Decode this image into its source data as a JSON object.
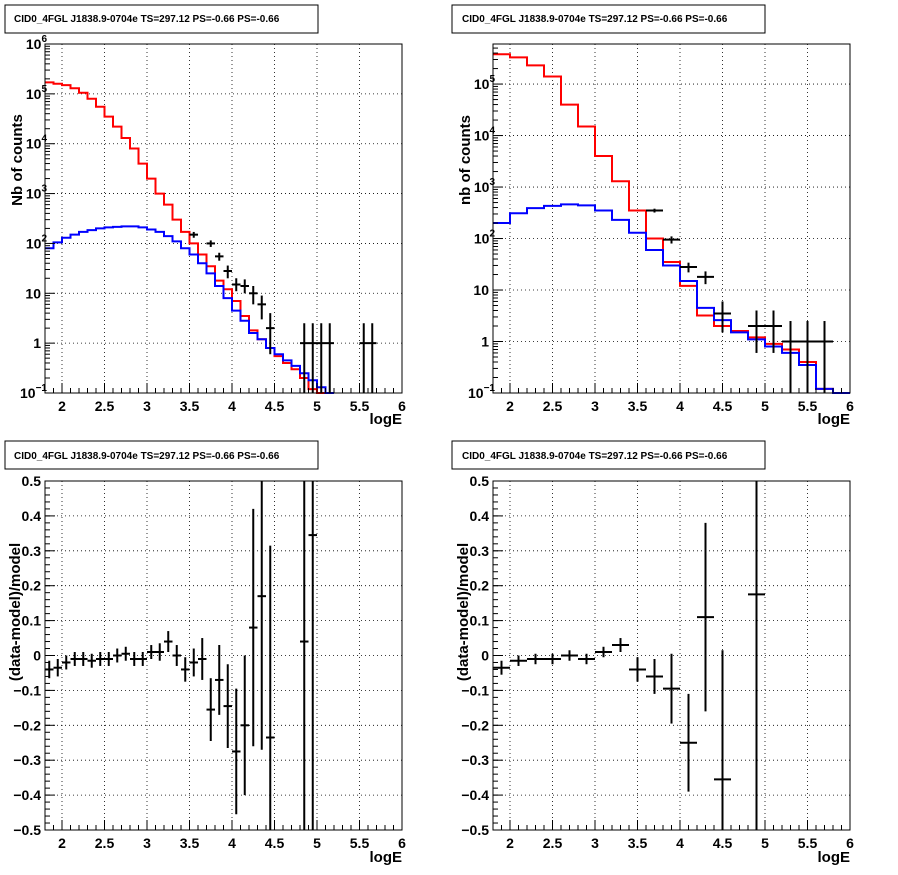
{
  "chart_data": [
    {
      "type": "histogram",
      "title": "CID0_4FGL J1838.9-0704e TS=297.12 PS=-0.66 PS=-0.66",
      "xlabel": "logE",
      "ylabel": "Nb of counts",
      "xlim": [
        1.8,
        6.0
      ],
      "ylim": [
        0.1,
        1000000
      ],
      "yscale": "log",
      "grid": true,
      "x_ticks": [
        "2",
        "2.5",
        "3",
        "3.5",
        "4",
        "4.5",
        "5",
        "5.5",
        "6"
      ],
      "y_ticks": [
        {
          "v": 0.1,
          "base": "10",
          "exp": "−1"
        },
        {
          "v": 1,
          "base": "1",
          "exp": ""
        },
        {
          "v": 10,
          "base": "10",
          "exp": ""
        },
        {
          "v": 100,
          "base": "10",
          "exp": "2"
        },
        {
          "v": 1000,
          "base": "10",
          "exp": "3"
        },
        {
          "v": 10000,
          "base": "10",
          "exp": "4"
        },
        {
          "v": 100000,
          "base": "10",
          "exp": "5"
        },
        {
          "v": 1000000,
          "base": "10",
          "exp": "6"
        }
      ],
      "bin_edges_start": 1.8,
      "bin_width": 0.1,
      "series": [
        {
          "color": "#ff0000",
          "kind": "step",
          "values": [
            170000,
            160000,
            150000,
            130000,
            105000,
            80000,
            55000,
            35000,
            22000,
            13000,
            8000,
            4000,
            2000,
            1000,
            600,
            300,
            170,
            100,
            60,
            35,
            18,
            12,
            7,
            3.5,
            1.8,
            1.2,
            0.8,
            0.55,
            0.4,
            0.3,
            0.2,
            0.12,
            0.1,
            0.1
          ]
        },
        {
          "color": "#0000ff",
          "kind": "step",
          "values": [
            80,
            105,
            130,
            150,
            170,
            185,
            200,
            210,
            215,
            220,
            220,
            210,
            190,
            170,
            140,
            110,
            80,
            60,
            40,
            25,
            14,
            8,
            4.5,
            2.8,
            1.6,
            1.2,
            0.8,
            0.6,
            0.45,
            0.35,
            0.25,
            0.18,
            0.13,
            0.1
          ]
        },
        {
          "color": "#000000",
          "kind": "points",
          "points": [
            {
              "x": 3.55,
              "y": 150,
              "lo": 130,
              "hi": 170
            },
            {
              "x": 3.75,
              "y": 100,
              "lo": 85,
              "hi": 115
            },
            {
              "x": 3.85,
              "y": 55,
              "lo": 45,
              "hi": 65
            },
            {
              "x": 3.95,
              "y": 28,
              "lo": 20,
              "hi": 36
            },
            {
              "x": 4.05,
              "y": 15,
              "lo": 11,
              "hi": 20
            },
            {
              "x": 4.15,
              "y": 14,
              "lo": 10,
              "hi": 19
            },
            {
              "x": 4.25,
              "y": 10,
              "lo": 6,
              "hi": 14
            },
            {
              "x": 4.35,
              "y": 6,
              "lo": 3,
              "hi": 9
            },
            {
              "x": 4.45,
              "y": 2,
              "lo": 0.6,
              "hi": 4
            },
            {
              "x": 4.85,
              "y": 1,
              "lo": 0.1,
              "hi": 2.5
            },
            {
              "x": 4.95,
              "y": 1,
              "lo": 0.1,
              "hi": 2.5
            },
            {
              "x": 5.05,
              "y": 1,
              "lo": 0.1,
              "hi": 2.5
            },
            {
              "x": 5.15,
              "y": 1,
              "lo": 0.1,
              "hi": 2.5
            },
            {
              "x": 5.55,
              "y": 1,
              "lo": 0.1,
              "hi": 2.5
            },
            {
              "x": 5.65,
              "y": 1,
              "lo": 0.1,
              "hi": 2.5
            }
          ]
        }
      ]
    },
    {
      "type": "histogram",
      "title": "CID0_4FGL J1838.9-0704e TS=297.12 PS=-0.66 PS=-0.66",
      "xlabel": "logE",
      "ylabel": "nb of counts",
      "xlim": [
        1.8,
        6.0
      ],
      "ylim": [
        0.1,
        600000
      ],
      "yscale": "log",
      "grid": true,
      "x_ticks": [
        "2",
        "2.5",
        "3",
        "3.5",
        "4",
        "4.5",
        "5",
        "5.5",
        "6"
      ],
      "y_ticks": [
        {
          "v": 0.1,
          "base": "10",
          "exp": "−1"
        },
        {
          "v": 1,
          "base": "1",
          "exp": ""
        },
        {
          "v": 10,
          "base": "10",
          "exp": ""
        },
        {
          "v": 100,
          "base": "10",
          "exp": "2"
        },
        {
          "v": 1000,
          "base": "10",
          "exp": "3"
        },
        {
          "v": 10000,
          "base": "10",
          "exp": "4"
        },
        {
          "v": 100000,
          "base": "10",
          "exp": "5"
        }
      ],
      "bin_edges_start": 1.8,
      "bin_width": 0.2,
      "series": [
        {
          "color": "#ff0000",
          "kind": "step",
          "values": [
            380000,
            330000,
            230000,
            140000,
            40000,
            15000,
            4000,
            1300,
            350,
            100,
            35,
            12,
            3.2,
            2.0,
            1.6,
            1.2,
            0.9,
            0.7,
            0.4,
            0.12,
            0.1
          ]
        },
        {
          "color": "#0000ff",
          "kind": "step",
          "values": [
            200,
            310,
            390,
            430,
            460,
            440,
            350,
            230,
            130,
            60,
            30,
            15,
            4.5,
            2.6,
            1.5,
            1.1,
            0.8,
            0.6,
            0.35,
            0.12,
            0.1
          ]
        },
        {
          "color": "#000000",
          "kind": "points",
          "points": [
            {
              "x": 3.7,
              "y": 350,
              "lo": 320,
              "hi": 380
            },
            {
              "x": 3.9,
              "y": 95,
              "lo": 80,
              "hi": 110
            },
            {
              "x": 4.1,
              "y": 28,
              "lo": 22,
              "hi": 34
            },
            {
              "x": 4.3,
              "y": 18,
              "lo": 13,
              "hi": 23
            },
            {
              "x": 4.5,
              "y": 3.5,
              "lo": 1.5,
              "hi": 6
            },
            {
              "x": 4.9,
              "y": 2,
              "lo": 0.6,
              "hi": 4
            },
            {
              "x": 5.1,
              "y": 2,
              "lo": 0.6,
              "hi": 4
            },
            {
              "x": 5.3,
              "y": 1,
              "lo": 0.1,
              "hi": 2.5
            },
            {
              "x": 5.5,
              "y": 1,
              "lo": 0.1,
              "hi": 2.5
            },
            {
              "x": 5.7,
              "y": 1,
              "lo": 0.1,
              "hi": 2.5
            }
          ]
        }
      ]
    },
    {
      "type": "scatter",
      "title": "CID0_4FGL J1838.9-0704e TS=297.12 PS=-0.66 PS=-0.66",
      "xlabel": "logE",
      "ylabel": "(data-model)/model",
      "xlim": [
        1.8,
        6.0
      ],
      "ylim": [
        -0.5,
        0.5
      ],
      "grid": true,
      "x_ticks": [
        "2",
        "2.5",
        "3",
        "3.5",
        "4",
        "4.5",
        "5",
        "5.5",
        "6"
      ],
      "y_ticks": [
        "−0.5",
        "−0.4",
        "−0.3",
        "−0.2",
        "−0.1",
        "0",
        "0.1",
        "0.2",
        "0.3",
        "0.4",
        "0.5"
      ],
      "bin_half_width": 0.05,
      "points": [
        {
          "x": 1.85,
          "y": -0.04,
          "err": 0.025
        },
        {
          "x": 1.95,
          "y": -0.035,
          "err": 0.025
        },
        {
          "x": 2.05,
          "y": -0.02,
          "err": 0.02
        },
        {
          "x": 2.15,
          "y": -0.01,
          "err": 0.02
        },
        {
          "x": 2.25,
          "y": -0.01,
          "err": 0.02
        },
        {
          "x": 2.35,
          "y": -0.015,
          "err": 0.02
        },
        {
          "x": 2.45,
          "y": -0.01,
          "err": 0.02
        },
        {
          "x": 2.55,
          "y": -0.01,
          "err": 0.02
        },
        {
          "x": 2.65,
          "y": 0.0,
          "err": 0.02
        },
        {
          "x": 2.75,
          "y": 0.005,
          "err": 0.02
        },
        {
          "x": 2.85,
          "y": -0.01,
          "err": 0.02
        },
        {
          "x": 2.95,
          "y": -0.01,
          "err": 0.02
        },
        {
          "x": 3.05,
          "y": 0.01,
          "err": 0.02
        },
        {
          "x": 3.15,
          "y": 0.01,
          "err": 0.025
        },
        {
          "x": 3.25,
          "y": 0.04,
          "err": 0.03
        },
        {
          "x": 3.35,
          "y": 0.0,
          "err": 0.03
        },
        {
          "x": 3.45,
          "y": -0.04,
          "err": 0.035
        },
        {
          "x": 3.55,
          "y": -0.02,
          "err": 0.04
        },
        {
          "x": 3.65,
          "y": -0.01,
          "err": 0.06
        },
        {
          "x": 3.75,
          "y": -0.155,
          "err": 0.09
        },
        {
          "x": 3.85,
          "y": -0.07,
          "err": 0.1
        },
        {
          "x": 3.95,
          "y": -0.145,
          "err": 0.12
        },
        {
          "x": 4.05,
          "y": -0.275,
          "err": 0.18
        },
        {
          "x": 4.15,
          "y": -0.2,
          "err": 0.2
        },
        {
          "x": 4.25,
          "y": 0.08,
          "err": 0.34
        },
        {
          "x": 4.35,
          "y": 0.17,
          "err": 0.44
        },
        {
          "x": 4.45,
          "y": -0.235,
          "err": 0.55
        },
        {
          "x": 4.85,
          "y": 0.04,
          "err": 1.0
        },
        {
          "x": 4.95,
          "y": 0.345,
          "err": 1.0
        }
      ]
    },
    {
      "type": "scatter",
      "title": "CID0_4FGL J1838.9-0704e TS=297.12 PS=-0.66 PS=-0.66",
      "xlabel": "logE",
      "ylabel": "(data-model)/model",
      "xlim": [
        1.8,
        6.0
      ],
      "ylim": [
        -0.5,
        0.5
      ],
      "grid": true,
      "x_ticks": [
        "2",
        "2.5",
        "3",
        "3.5",
        "4",
        "4.5",
        "5",
        "5.5",
        "6"
      ],
      "y_ticks": [
        "−0.5",
        "−0.4",
        "−0.3",
        "−0.2",
        "−0.1",
        "0",
        "0.1",
        "0.2",
        "0.3",
        "0.4",
        "0.5"
      ],
      "bin_half_width": 0.1,
      "points": [
        {
          "x": 1.9,
          "y": -0.035,
          "err": 0.02
        },
        {
          "x": 2.1,
          "y": -0.015,
          "err": 0.015
        },
        {
          "x": 2.3,
          "y": -0.01,
          "err": 0.015
        },
        {
          "x": 2.5,
          "y": -0.01,
          "err": 0.015
        },
        {
          "x": 2.7,
          "y": 0.0,
          "err": 0.015
        },
        {
          "x": 2.9,
          "y": -0.01,
          "err": 0.015
        },
        {
          "x": 3.1,
          "y": 0.01,
          "err": 0.015
        },
        {
          "x": 3.3,
          "y": 0.03,
          "err": 0.02
        },
        {
          "x": 3.5,
          "y": -0.04,
          "err": 0.035
        },
        {
          "x": 3.7,
          "y": -0.06,
          "err": 0.05
        },
        {
          "x": 3.9,
          "y": -0.095,
          "err": 0.1
        },
        {
          "x": 4.1,
          "y": -0.25,
          "err": 0.14
        },
        {
          "x": 4.3,
          "y": 0.11,
          "err": 0.27
        },
        {
          "x": 4.5,
          "y": -0.355,
          "err": 0.37
        },
        {
          "x": 4.9,
          "y": 0.175,
          "err": 1.0
        }
      ]
    }
  ]
}
